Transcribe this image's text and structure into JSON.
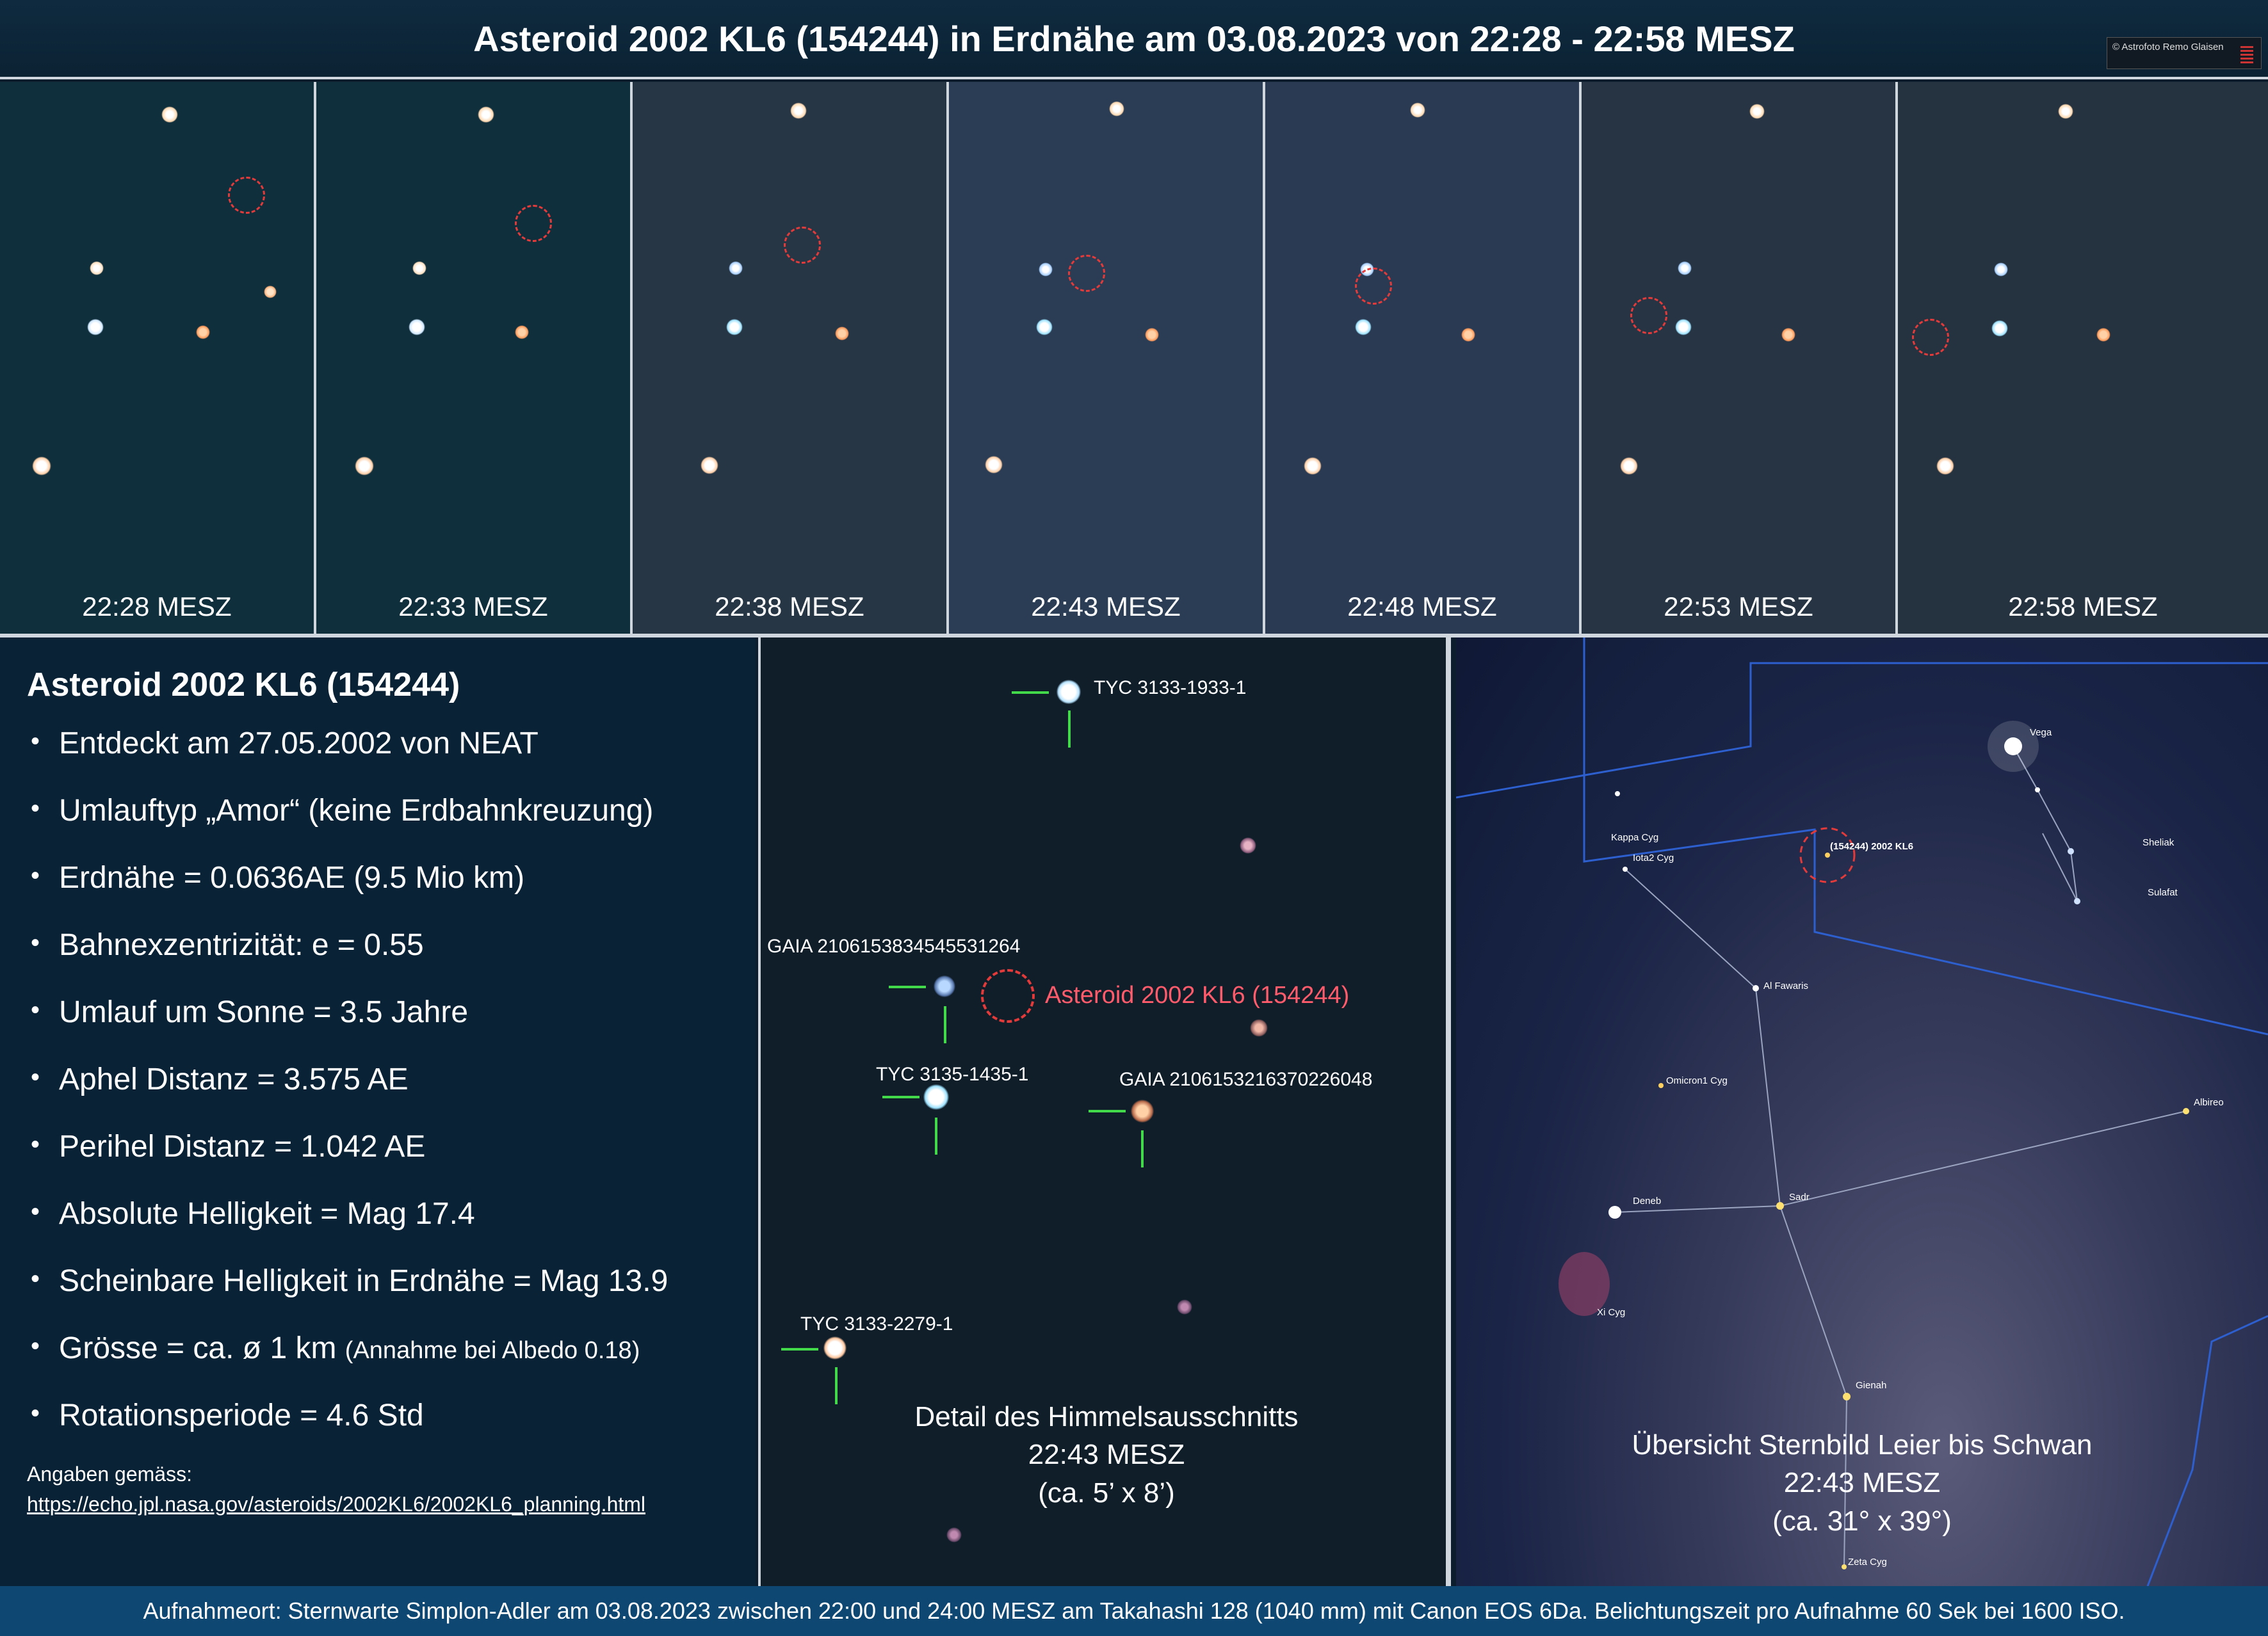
{
  "header": {
    "title": "Asteroid 2002 KL6 (154244) in Erdnähe am 03.08.2023 von 22:28 - 22:58 MESZ"
  },
  "copyright": "© Astrofoto Remo Glaisen",
  "strip": {
    "times": [
      "22:28 MESZ",
      "22:33 MESZ",
      "22:38 MESZ",
      "22:43 MESZ",
      "22:48 MESZ",
      "22:53 MESZ",
      "22:58 MESZ"
    ]
  },
  "info": {
    "title": "Asteroid 2002 KL6 (154244)",
    "items": [
      "Entdeckt am 27.05.2002 von NEAT",
      "Umlauftyp „Amor“ (keine Erdbahnkreuzung)",
      "Erdnähe = 0.0636AE (9.5 Mio km)",
      "Bahnexzentrizität: e = 0.55",
      "Umlauf um Sonne = 3.5 Jahre",
      "Aphel Distanz = 3.575 AE",
      "Perihel Distanz = 1.042 AE",
      "Absolute Helligkeit = Mag 17.4",
      "Scheinbare Helligkeit in Erdnähe = Mag 13.9"
    ],
    "size_main": "Grösse = ca. ø 1 km",
    "size_note": "(Annahme bei Albedo 0.18)",
    "rotation": "Rotationsperiode = 4.6 Std",
    "source_label": "Angaben gemäss:",
    "source_url": "https://echo.jpl.nasa.gov/asteroids/2002KL6/2002KL6_planning.html"
  },
  "detail": {
    "labels": {
      "tyc1": "TYC 3133-1933-1",
      "gaia1": "GAIA 2106153834545531264",
      "asteroid": "Asteroid 2002 KL6 (154244)",
      "tyc2": "TYC 3135-1435-1",
      "gaia2": "GAIA 2106153216370226048",
      "tyc3": "TYC 3133-2279-1"
    },
    "caption": [
      "Detail des Himmelsausschnitts",
      "22:43 MESZ",
      "(ca. 5’ x 8’)"
    ]
  },
  "overview": {
    "labels": {
      "vega": "Vega",
      "kappa": "Kappa Cyg",
      "iota": "Iota2 Cyg",
      "asteroid": "(154244) 2002 KL6",
      "sheliak": "Sheliak",
      "sulafat": "Sulafat",
      "alfawaris": "Al Fawaris",
      "omicron": "Omicron1 Cyg",
      "albireo": "Albireo",
      "deneb": "Deneb",
      "sadr": "Sadr",
      "xi": "Xi Cyg",
      "gienah": "Gienah",
      "zeta": "Zeta Cyg"
    },
    "caption": [
      "Übersicht Sternbild Leier bis Schwan",
      "22:43 MESZ",
      "(ca. 31° x 39°)"
    ]
  },
  "footer": "Aufnahmeort: Sternwarte Simplon-Adler am 03.08.2023 zwischen 22:00 und 24:00 MESZ am Takahashi 128 (1040 mm) mit Canon EOS 6Da. Belichtungszeit pro Aufnahme 60 Sek bei 1600 ISO."
}
